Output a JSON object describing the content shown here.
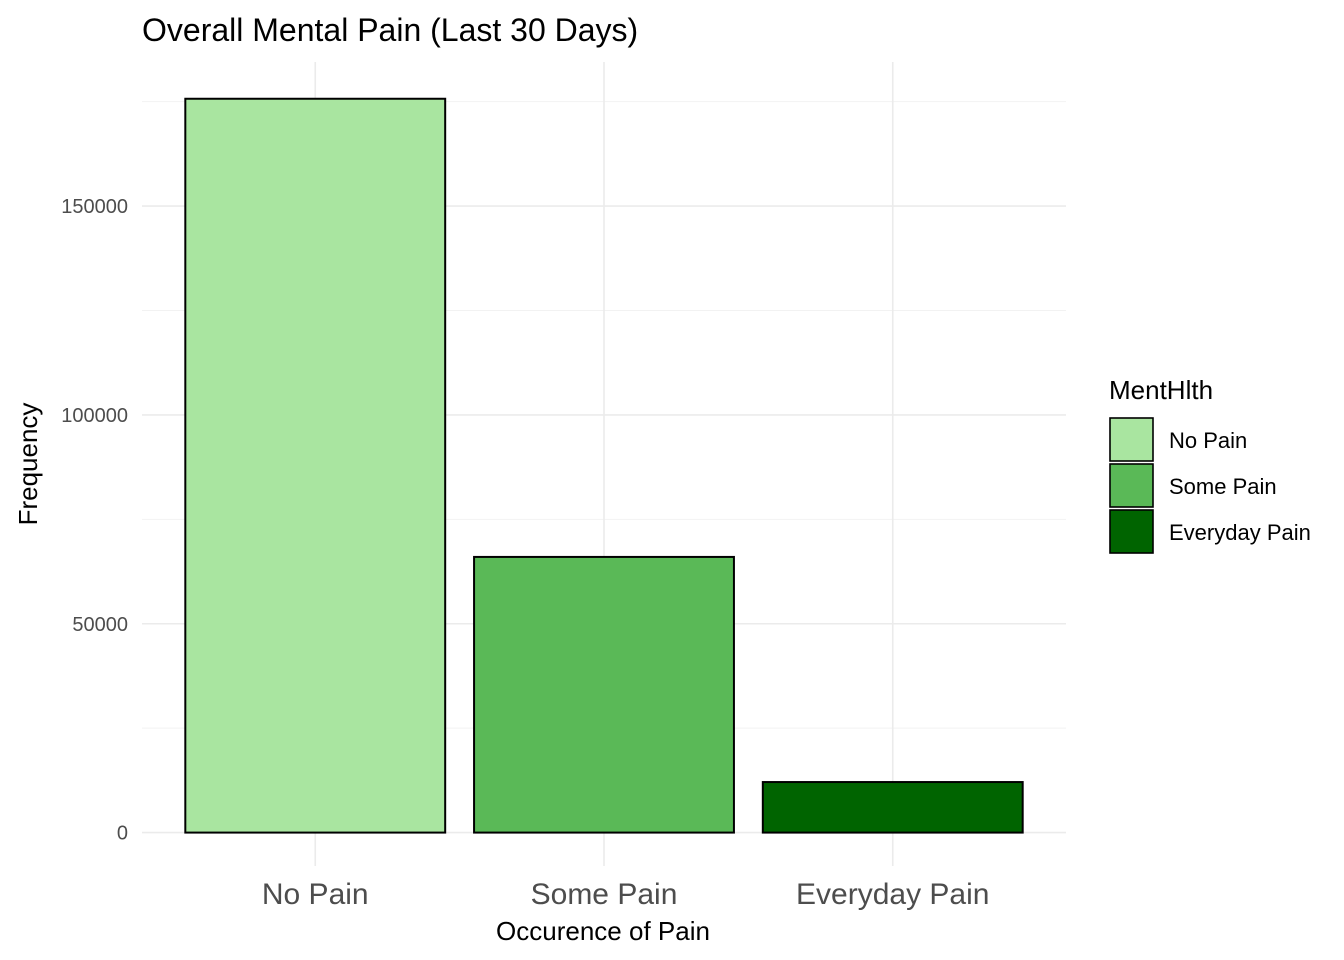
{
  "chart_data": {
    "type": "bar",
    "title": "Overall Mental Pain (Last 30 Days)",
    "xlabel": "Occurence of Pain",
    "ylabel": "Frequency",
    "categories": [
      "No Pain",
      "Some Pain",
      "Everyday Pain"
    ],
    "values": [
      175700,
      66000,
      12100
    ],
    "colors": [
      "#a9e5a0",
      "#5ab957",
      "#006400"
    ],
    "ylim": [
      -8000,
      184500
    ],
    "yticks": [
      0,
      50000,
      100000,
      150000
    ],
    "ytick_labels": [
      "0",
      "50000",
      "100000",
      "150000"
    ],
    "grid": true,
    "legend": {
      "title": "MentHlth",
      "placement": "right",
      "entries": [
        "No Pain",
        "Some Pain",
        "Everyday Pain"
      ]
    }
  }
}
